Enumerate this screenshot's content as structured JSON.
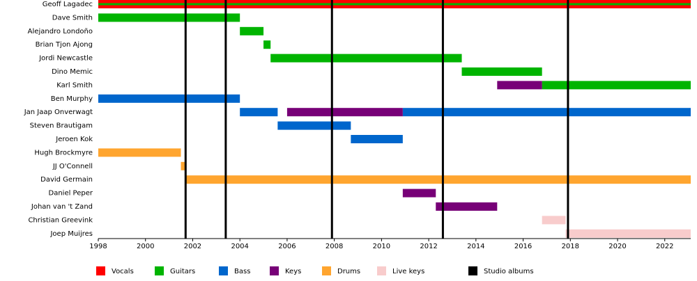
{
  "chart_data": {
    "type": "timeline",
    "categories": [
      "Geoff Lagadec",
      "Dave Smith",
      "Alejandro Londoño",
      "Brian Tjon Ajong",
      "Jordi Newcastle",
      "Dino Memic",
      "Karl Smith",
      "Ben Murphy",
      "Jan Jaap Onverwagt",
      "Steven Brautigam",
      "Jeroen Kok",
      "Hugh Brockmyre",
      "JJ O'Connell",
      "David Germain",
      "Daniel Peper",
      "Johan van 't Zand",
      "Christian Greevink",
      "Joep Muijres"
    ],
    "xlim": [
      1998,
      2023.1
    ],
    "xticks": [
      1998,
      2000,
      2002,
      2004,
      2006,
      2008,
      2010,
      2012,
      2014,
      2016,
      2018,
      2020,
      2022
    ],
    "series": [
      {
        "name": "Vocals",
        "color": "#ff0000",
        "bars": [
          {
            "member": "Geoff Lagadec",
            "start": 1998,
            "end": 2023.1
          }
        ]
      },
      {
        "name": "Guitars",
        "color": "#00b400",
        "bars": [
          {
            "member": "Geoff Lagadec",
            "start": 1998,
            "end": 2023.1
          },
          {
            "member": "Dave Smith",
            "start": 1998,
            "end": 2004
          },
          {
            "member": "Alejandro Londoño",
            "start": 2004,
            "end": 2005
          },
          {
            "member": "Brian Tjon Ajong",
            "start": 2005,
            "end": 2005.3
          },
          {
            "member": "Jordi Newcastle",
            "start": 2005.3,
            "end": 2013.4
          },
          {
            "member": "Dino Memic",
            "start": 2013.4,
            "end": 2016.8
          },
          {
            "member": "Karl Smith",
            "start": 2016.8,
            "end": 2023.1
          }
        ]
      },
      {
        "name": "Bass",
        "color": "#0066cc",
        "bars": [
          {
            "member": "Ben Murphy",
            "start": 1998,
            "end": 2004
          },
          {
            "member": "Jan Jaap Onverwagt",
            "start": 2004,
            "end": 2005.6
          },
          {
            "member": "Steven Brautigam",
            "start": 2005.6,
            "end": 2008.7
          },
          {
            "member": "Jeroen Kok",
            "start": 2008.7,
            "end": 2010.9
          },
          {
            "member": "Jan Jaap Onverwagt",
            "start": 2010.9,
            "end": 2023.1
          }
        ]
      },
      {
        "name": "Keys",
        "color": "#770077",
        "bars": [
          {
            "member": "Jan Jaap Onverwagt",
            "start": 2006,
            "end": 2010.9
          },
          {
            "member": "Daniel Peper",
            "start": 2010.9,
            "end": 2012.3
          },
          {
            "member": "Johan van 't Zand",
            "start": 2012.3,
            "end": 2014.9
          },
          {
            "member": "Karl Smith",
            "start": 2014.9,
            "end": 2016.8
          }
        ]
      },
      {
        "name": "Drums",
        "color": "#ffa52f",
        "bars": [
          {
            "member": "Hugh Brockmyre",
            "start": 1998,
            "end": 2001.5
          },
          {
            "member": "JJ O'Connell",
            "start": 2001.5,
            "end": 2001.7
          },
          {
            "member": "David Germain",
            "start": 2001.7,
            "end": 2023.1
          }
        ]
      },
      {
        "name": "Live keys",
        "color": "#f8cccc",
        "bars": [
          {
            "member": "Christian Greevink",
            "start": 2016.8,
            "end": 2017.8
          },
          {
            "member": "Joep Muijres",
            "start": 2017.8,
            "end": 2023.1
          }
        ]
      }
    ],
    "albums": {
      "name": "Studio albums",
      "color": "#000000",
      "x": [
        2001.7,
        2003.4,
        2007.9,
        2012.6,
        2017.9
      ]
    }
  }
}
